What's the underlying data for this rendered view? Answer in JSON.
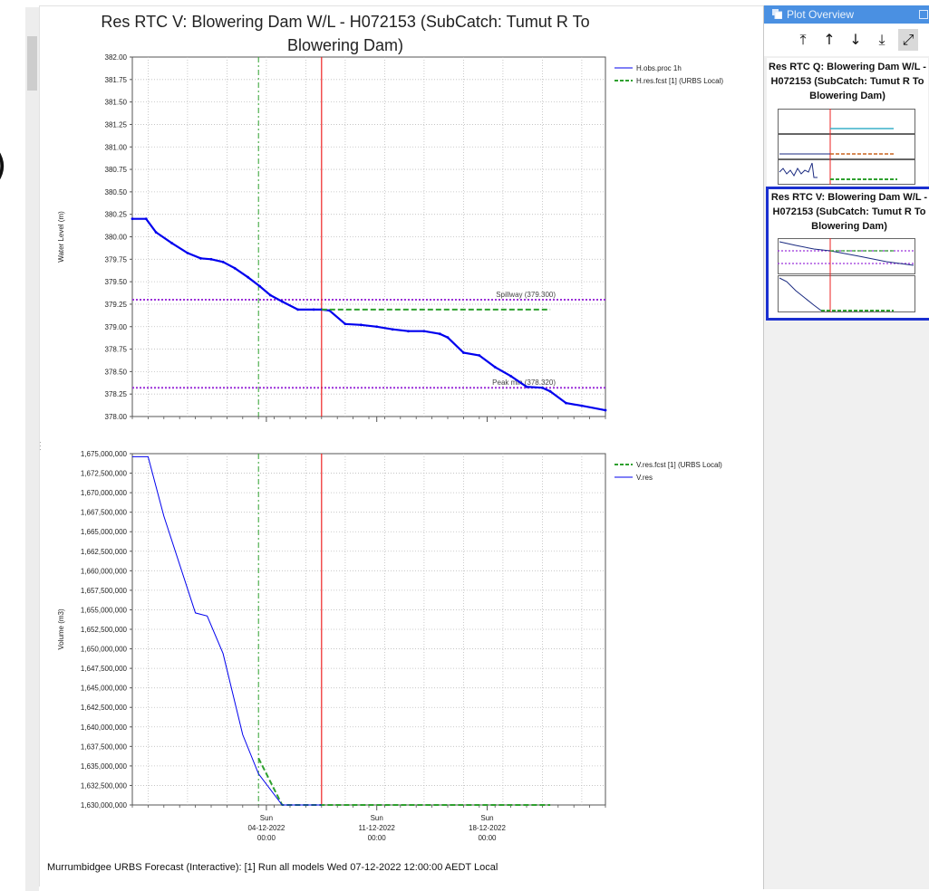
{
  "window": {
    "title": "Res RTC V: Blowering Dam W/L  - H072153 (SubCatch: Tumut R To Blowering Dam)",
    "footer": "Murrumbidgee URBS Forecast (Interactive): [1] Run all models Wed 07-12-2022 12:00:00 AEDT Local"
  },
  "plot_overview": {
    "header": "Plot Overview",
    "toolbar": [
      {
        "name": "move-to-top",
        "glyph": "⤒"
      },
      {
        "name": "move-up",
        "glyph": "↑"
      },
      {
        "name": "move-down",
        "glyph": "↓"
      },
      {
        "name": "move-to-bottom",
        "glyph": "⤓"
      },
      {
        "name": "expand",
        "glyph": "⤢"
      }
    ],
    "thumbnails": [
      {
        "title": "Res RTC Q: Blowering Dam W/L  - H072153 (SubCatch: Tumut R To Blowering Dam)",
        "selected": false
      },
      {
        "title": "Res RTC V: Blowering Dam W/L  - H072153 (SubCatch: Tumut R To Blowering Dam)",
        "selected": true
      }
    ]
  },
  "chart_data": [
    {
      "type": "line",
      "ylabel": "Water Level (m)",
      "ylim": [
        378.0,
        382.0
      ],
      "yticks": [
        "382.00",
        "381.75",
        "381.50",
        "381.25",
        "381.00",
        "380.75",
        "380.50",
        "380.25",
        "380.00",
        "379.75",
        "379.50",
        "379.25",
        "379.00",
        "378.75",
        "378.50",
        "378.25",
        "378.00"
      ],
      "xlim": [
        "2022-11-25 12:00",
        "2022-12-25 12:00"
      ],
      "x_major_ticks": [
        "2022-12-04 00:00",
        "2022-12-11 00:00",
        "2022-12-18 00:00"
      ],
      "forecast_time": "2022-12-07 12:00",
      "green_marker_time": "2022-12-03 12:00",
      "legend": [
        "H.obs.proc 1h",
        "H.res.fcst [1]  (URBS Local)"
      ],
      "series": [
        {
          "name": "H.obs.proc 1h",
          "color": "#0000ee",
          "x": [
            "2022-11-25 12:00",
            "2022-11-26 09:00",
            "2022-11-27 00:00",
            "2022-11-28 00:00",
            "2022-11-29 00:00",
            "2022-11-29 20:00",
            "2022-11-30 12:00",
            "2022-12-01 06:00",
            "2022-12-02 00:00",
            "2022-12-02 20:00",
            "2022-12-03 14:00",
            "2022-12-04 06:00",
            "2022-12-05 00:00",
            "2022-12-06 00:00",
            "2022-12-07 00:00",
            "2022-12-07 12:00",
            "2022-12-08 00:00",
            "2022-12-09 00:00",
            "2022-12-10 00:00",
            "2022-12-11 00:00",
            "2022-12-12 00:00",
            "2022-12-13 00:00",
            "2022-12-14 00:00",
            "2022-12-15 00:00",
            "2022-12-15 12:00",
            "2022-12-16 12:00",
            "2022-12-17 12:00",
            "2022-12-18 12:00",
            "2022-12-19 12:00",
            "2022-12-20 12:00",
            "2022-12-21 12:00",
            "2022-12-22 00:00",
            "2022-12-23 00:00",
            "2022-12-24 00:00",
            "2022-12-25 12:00"
          ],
          "y": [
            380.2,
            380.2,
            380.05,
            379.93,
            379.82,
            379.76,
            379.75,
            379.72,
            379.65,
            379.55,
            379.45,
            379.35,
            379.28,
            379.19,
            379.19,
            379.19,
            379.18,
            379.03,
            379.02,
            379.0,
            378.97,
            378.95,
            378.95,
            378.92,
            378.88,
            378.71,
            378.68,
            378.55,
            378.45,
            378.33,
            378.32,
            378.28,
            378.15,
            378.12,
            378.07
          ]
        },
        {
          "name": "H.res.fcst [1]  (URBS Local)",
          "color": "#2ea02e",
          "dashed": true,
          "x": [
            "2022-12-07 12:00",
            "2022-12-22 00:00"
          ],
          "y": [
            379.19,
            379.19
          ]
        }
      ],
      "reference_lines": [
        {
          "label": "Spillway  (379.300)",
          "value": 379.3,
          "color": "#9b30d9"
        },
        {
          "label": "Peak min  (378.320)",
          "value": 378.32,
          "color": "#9b30d9"
        }
      ]
    },
    {
      "type": "line",
      "ylabel": "Volume (m3)",
      "ylim": [
        1630000000,
        1675000000
      ],
      "yticks": [
        "1,675,000,000",
        "1,672,500,000",
        "1,670,000,000",
        "1,667,500,000",
        "1,665,000,000",
        "1,662,500,000",
        "1,660,000,000",
        "1,657,500,000",
        "1,655,000,000",
        "1,652,500,000",
        "1,650,000,000",
        "1,647,500,000",
        "1,645,000,000",
        "1,642,500,000",
        "1,640,000,000",
        "1,637,500,000",
        "1,635,000,000",
        "1,632,500,000",
        "1,630,000,000"
      ],
      "xlim": [
        "2022-11-25 12:00",
        "2022-12-25 12:00"
      ],
      "x_major_ticks": [
        "2022-12-04 00:00",
        "2022-12-11 00:00",
        "2022-12-18 00:00"
      ],
      "x_tick_labels": [
        {
          "day": "Sun",
          "date": "04-12-2022",
          "time": "00:00"
        },
        {
          "day": "Sun",
          "date": "11-12-2022",
          "time": "00:00"
        },
        {
          "day": "Sun",
          "date": "18-12-2022",
          "time": "00:00"
        }
      ],
      "forecast_time": "2022-12-07 12:00",
      "green_marker_time": "2022-12-03 12:00",
      "legend": [
        "V.res.fcst [1]  (URBS Local)",
        "V.res"
      ],
      "series": [
        {
          "name": "V.res.fcst [1]  (URBS Local)",
          "color": "#2ea02e",
          "dashed": true,
          "x": [
            "2022-12-03 12:00",
            "2022-12-05 00:00",
            "2022-12-22 00:00"
          ],
          "y": [
            1636000000,
            1630000000,
            1630000000
          ]
        },
        {
          "name": "V.res",
          "color": "#0000ee",
          "x": [
            "2022-11-25 12:00",
            "2022-11-26 12:00",
            "2022-11-27 12:00",
            "2022-11-29 12:00",
            "2022-11-30 06:00",
            "2022-12-01 06:00",
            "2022-12-02 12:00",
            "2022-12-03 12:00",
            "2022-12-05 00:00",
            "2022-12-07 12:00"
          ],
          "y": [
            1674600000,
            1674600000,
            1667000000,
            1654600000,
            1654200000,
            1649400000,
            1639000000,
            1634000000,
            1630000000,
            1630000000
          ]
        }
      ]
    }
  ]
}
